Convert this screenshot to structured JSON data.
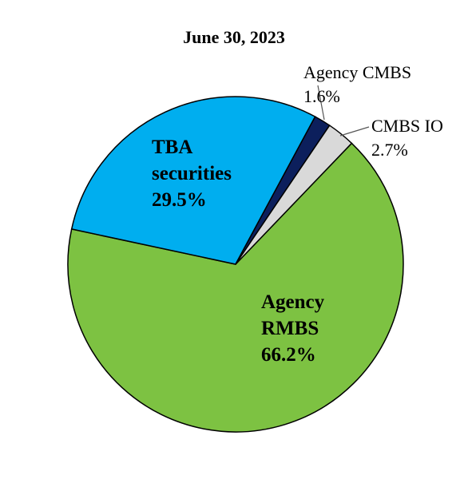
{
  "chart_data": {
    "type": "pie",
    "title": "June 30, 2023",
    "categories": [
      "Agency RMBS",
      "TBA securities",
      "Agency CMBS",
      "CMBS IO"
    ],
    "values": [
      66.2,
      29.5,
      1.6,
      2.7
    ],
    "value_labels": [
      "66.2%",
      "29.5%",
      "1.6%",
      "2.7%"
    ],
    "colors": [
      "#7dc242",
      "#00aeef",
      "#0c1f5c",
      "#d9d9d9"
    ]
  }
}
